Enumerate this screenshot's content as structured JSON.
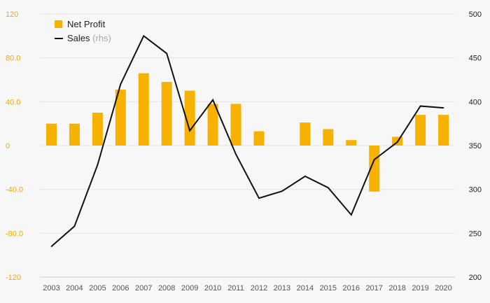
{
  "chart_data": {
    "type": "bar+line",
    "categories": [
      "2003",
      "2004",
      "2005",
      "2006",
      "2007",
      "2008",
      "2009",
      "2010",
      "2011",
      "2012",
      "2013",
      "2014",
      "2015",
      "2016",
      "2017",
      "2018",
      "2019",
      "2020"
    ],
    "series": [
      {
        "name": "Net Profit",
        "type": "bar",
        "axis": "left",
        "color": "#f7b100",
        "values": [
          20,
          20,
          30,
          51,
          66,
          58,
          50,
          38,
          38,
          13,
          0,
          21,
          15,
          5,
          -42,
          8,
          28,
          28
        ]
      },
      {
        "name": "Sales",
        "name_suffix": "(rhs)",
        "type": "line",
        "axis": "right",
        "color": "#111111",
        "values": [
          235,
          258,
          328,
          420,
          475,
          455,
          367,
          402,
          340,
          290,
          298,
          315,
          302,
          271,
          334,
          354,
          395,
          393
        ]
      }
    ],
    "left_axis": {
      "ylim": [
        -120,
        120
      ],
      "ticks": [
        120,
        80,
        40,
        0,
        -40,
        -80,
        -120
      ],
      "tick_labels": [
        "120",
        "80.0",
        "40.0",
        "0",
        "-40.0",
        "-80.0",
        "-120"
      ]
    },
    "right_axis": {
      "ylim": [
        200,
        500
      ],
      "ticks": [
        500,
        450,
        400,
        350,
        300,
        250,
        200
      ],
      "tick_labels": [
        "500",
        "450",
        "400",
        "350",
        "300",
        "250",
        "200"
      ]
    },
    "grid": true,
    "legend_position": "top-left"
  }
}
